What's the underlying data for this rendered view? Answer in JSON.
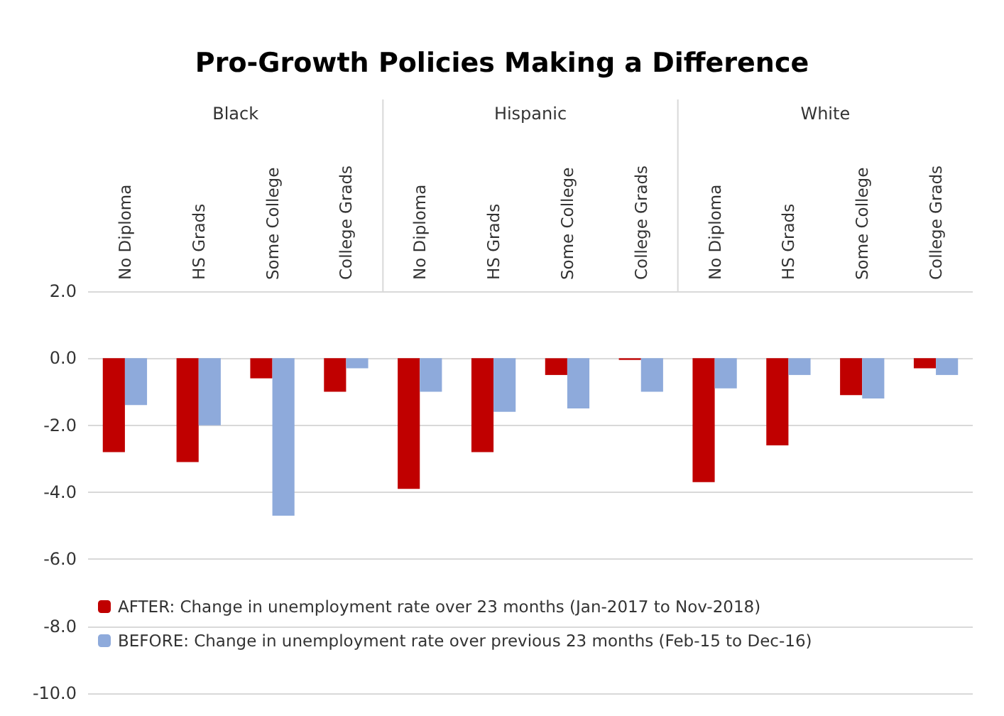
{
  "chart_data": {
    "type": "bar",
    "title": "Pro-Growth Policies Making a Difference",
    "categories": [
      "No Diploma",
      "HS Grads",
      "Some College",
      "College Grads",
      "No Diploma",
      "HS Grads",
      "Some College",
      "College Grads",
      "No Diploma",
      "HS Grads",
      "Some College",
      "College Grads"
    ],
    "annotations": [
      "Black",
      "Hispanic",
      "White"
    ],
    "series": [
      {
        "name": "AFTER: Change in unemployment rate over 23 months (Jan-2017 to Nov-2018)",
        "color": "#c00000",
        "values": [
          -2.8,
          -3.1,
          -0.6,
          -1.0,
          -3.9,
          -2.8,
          -0.5,
          -0.05,
          -3.7,
          -2.6,
          -1.1,
          -0.3
        ]
      },
      {
        "name": "BEFORE: Change in unemployment rate over previous 23 months (Feb-15 to Dec-16)",
        "color": "#8eaadb",
        "values": [
          -1.4,
          -2.0,
          -4.7,
          -0.3,
          -1.0,
          -1.6,
          -1.5,
          -1.0,
          -0.9,
          -0.5,
          -1.2,
          -0.5
        ]
      }
    ],
    "ylim": [
      -10,
      2
    ],
    "yticks": [
      {
        "value": 2,
        "label": "2.0"
      },
      {
        "value": 0,
        "label": "0.0"
      },
      {
        "value": -2,
        "label": "-2.0"
      },
      {
        "value": -4,
        "label": "-4.0"
      },
      {
        "value": -6,
        "label": "-6.0"
      },
      {
        "value": -8,
        "label": "-8.0"
      },
      {
        "value": -10,
        "label": "-10.0"
      }
    ],
    "grid": "y",
    "legend": "bottom left"
  }
}
